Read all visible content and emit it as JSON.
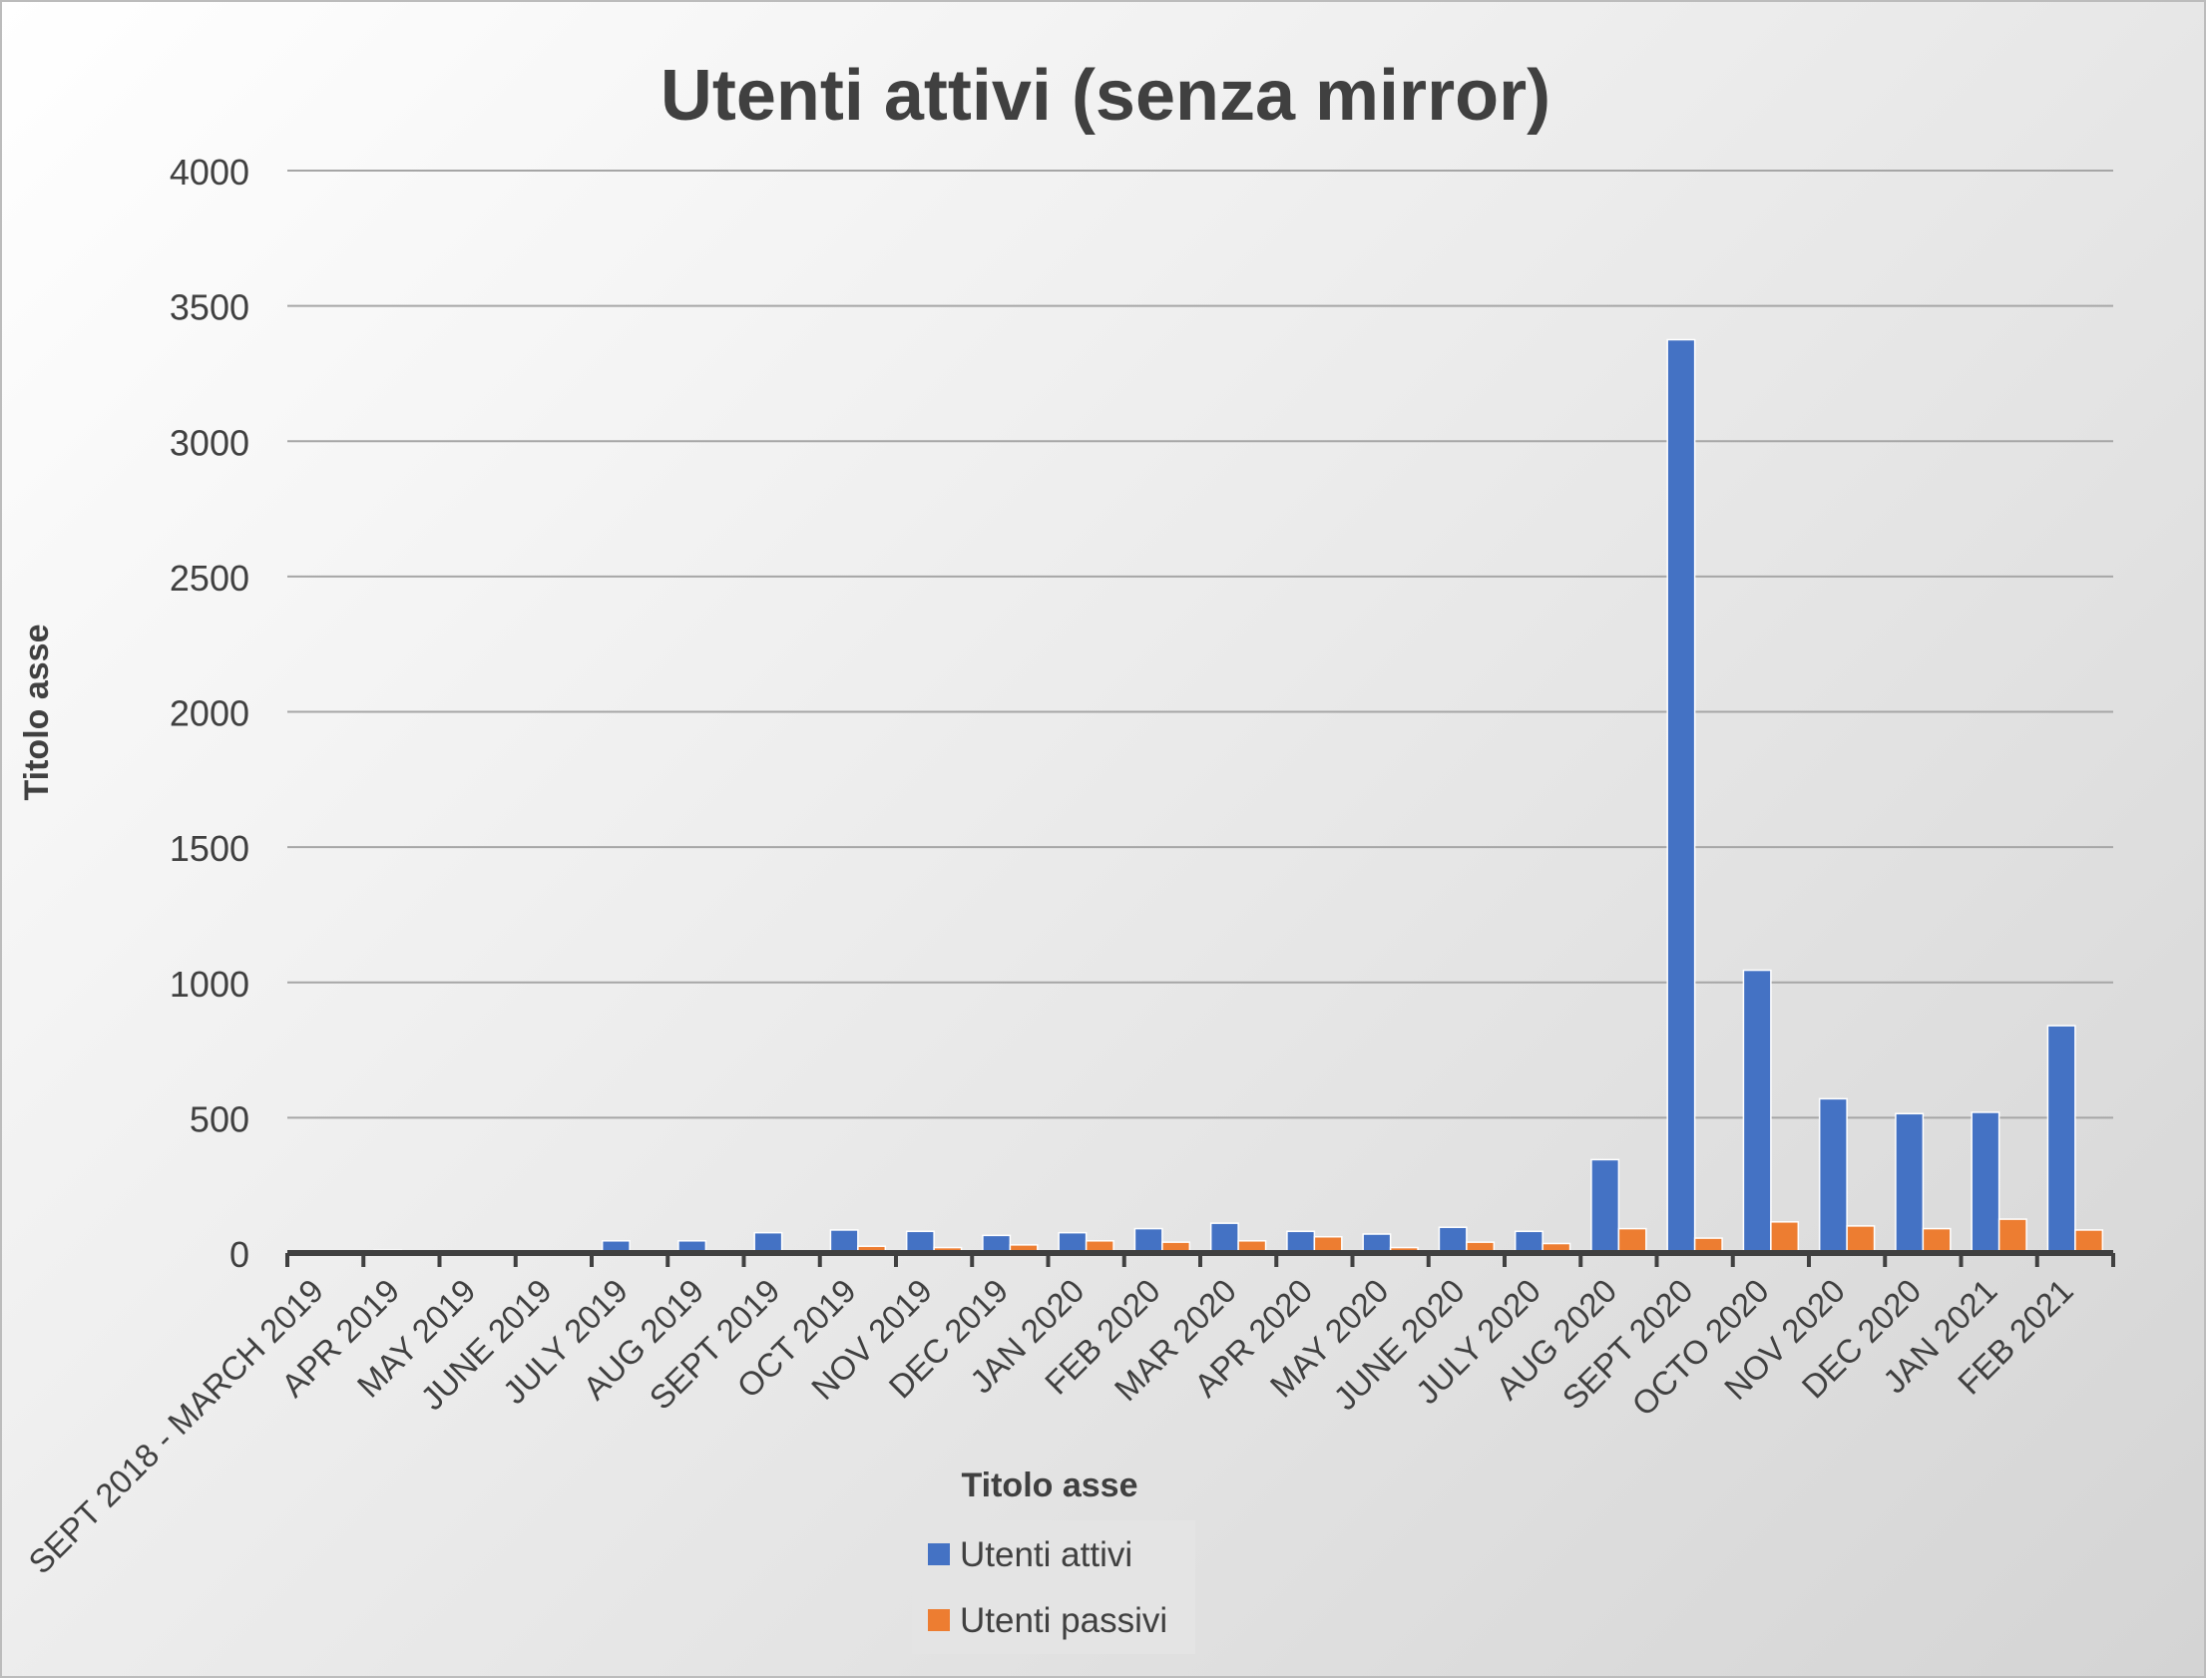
{
  "chart_data": {
    "type": "bar",
    "title": "Utenti attivi (senza mirror)",
    "xlabel": "Titolo asse",
    "ylabel": "Titolo asse",
    "ylim": [
      0,
      4000
    ],
    "yticks": [
      0,
      500,
      1000,
      1500,
      2000,
      2500,
      3000,
      3500,
      4000
    ],
    "grid": true,
    "legend_position": "bottom",
    "categories": [
      "SEPT 2018 - MARCH 2019",
      "APR 2019",
      "MAY 2019",
      "JUNE 2019",
      "JULY 2019",
      "AUG 2019",
      "SEPT 2019",
      "OCT 2019",
      "NOV 2019",
      "DEC 2019",
      "JAN 2020",
      "FEB 2020",
      "MAR 2020",
      "APR 2020",
      "MAY 2020",
      "JUNE 2020",
      "JULY 2020",
      "AUG 2020",
      "SEPT 2020",
      "OCTO 2020",
      "NOV 2020",
      "DEC 2020",
      "JAN 2021",
      "FEB 2021"
    ],
    "series": [
      {
        "name": "Utenti attivi",
        "color": "#4472C4",
        "values": [
          5,
          10,
          5,
          5,
          45,
          45,
          75,
          85,
          80,
          65,
          75,
          90,
          110,
          80,
          70,
          95,
          80,
          345,
          3375,
          1045,
          570,
          515,
          520,
          840
        ]
      },
      {
        "name": "Utenti passivi",
        "color": "#ED7D31",
        "values": [
          0,
          0,
          0,
          0,
          0,
          0,
          0,
          25,
          20,
          30,
          45,
          40,
          45,
          60,
          20,
          40,
          35,
          90,
          55,
          115,
          100,
          90,
          125,
          85
        ]
      }
    ]
  }
}
